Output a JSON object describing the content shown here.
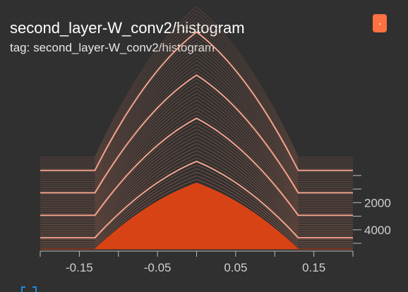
{
  "card": {
    "title": "second_layer-W_conv2/histogram",
    "tag_label": "tag: second_layer-W_conv2/histogram"
  },
  "colors": {
    "background": "#303030",
    "run_color": "#ff7043",
    "fill_front": "#d84315",
    "line_light": "#ffab91",
    "line_mid": "#ff8a65",
    "axis_text": "#cfcfcf",
    "expand_icon": "#1e88e5"
  },
  "icons": {
    "run_chip": "run-color-chip",
    "expand": "fullscreen-expand-icon"
  },
  "chart_data": {
    "type": "histogram-offset",
    "title": "",
    "x_ticks": [
      "-0.15",
      "-0.05",
      "0.05",
      "0.15"
    ],
    "x_tick_values": [
      -0.15,
      -0.05,
      0.05,
      0.15
    ],
    "x_range": [
      -0.2,
      0.2
    ],
    "y_ticks": [
      "2000",
      "4000"
    ],
    "y_tick_values": [
      2000,
      4000
    ],
    "y_range": [
      -200,
      5000
    ],
    "grid": false,
    "distribution": {
      "center": 0.0,
      "support": [
        -0.13,
        0.13
      ],
      "peak_count_front": 0.36,
      "peak_count_back": 0.82
    }
  }
}
